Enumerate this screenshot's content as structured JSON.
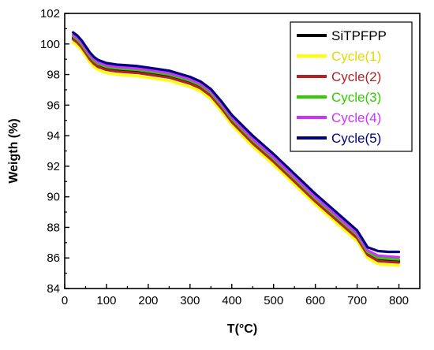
{
  "chart_data": {
    "type": "line",
    "xlabel": "T(°C)",
    "ylabel": "Weigth (%)",
    "xlim": [
      0,
      850
    ],
    "ylim": [
      84,
      102
    ],
    "xticks": [
      "0",
      "100",
      "200",
      "300",
      "400",
      "500",
      "600",
      "700",
      "800"
    ],
    "yticks": [
      "84",
      "86",
      "88",
      "90",
      "92",
      "94",
      "96",
      "98",
      "100",
      "102"
    ],
    "grid": false,
    "legend_position": "top-right",
    "x": [
      20,
      30,
      40,
      50,
      60,
      70,
      80,
      100,
      125,
      150,
      175,
      200,
      250,
      300,
      325,
      350,
      375,
      400,
      450,
      500,
      550,
      600,
      650,
      700,
      725,
      750,
      775,
      800
    ],
    "series": [
      {
        "name": "SiTPFPP",
        "color": "#000000",
        "values": [
          100.4,
          100.2,
          99.9,
          99.5,
          99.1,
          98.8,
          98.6,
          98.4,
          98.3,
          98.25,
          98.2,
          98.1,
          97.9,
          97.5,
          97.2,
          96.7,
          95.9,
          95.0,
          93.6,
          92.4,
          91.1,
          89.8,
          88.6,
          87.4,
          86.3,
          85.9,
          85.85,
          85.8
        ]
      },
      {
        "name": "Cycle(1)",
        "color": "#ffff00",
        "values": [
          100.1,
          99.9,
          99.6,
          99.2,
          98.8,
          98.5,
          98.3,
          98.1,
          98.0,
          97.95,
          97.9,
          97.8,
          97.6,
          97.2,
          96.9,
          96.4,
          95.6,
          94.7,
          93.3,
          92.1,
          90.8,
          89.5,
          88.3,
          87.1,
          86.0,
          85.6,
          85.55,
          85.5
        ]
      },
      {
        "name": "Cycle(2)",
        "color": "#b22222",
        "values": [
          100.3,
          100.1,
          99.8,
          99.4,
          99.0,
          98.7,
          98.5,
          98.3,
          98.2,
          98.15,
          98.1,
          98.0,
          97.8,
          97.4,
          97.1,
          96.6,
          95.8,
          94.9,
          93.5,
          92.3,
          91.0,
          89.7,
          88.5,
          87.3,
          86.2,
          85.8,
          85.75,
          85.7
        ]
      },
      {
        "name": "Cycle(3)",
        "color": "#33cc00",
        "values": [
          100.5,
          100.3,
          100.0,
          99.6,
          99.2,
          98.9,
          98.7,
          98.5,
          98.4,
          98.35,
          98.3,
          98.2,
          98.0,
          97.6,
          97.3,
          96.8,
          96.0,
          95.1,
          93.7,
          92.5,
          91.2,
          89.9,
          88.7,
          87.5,
          86.4,
          86.0,
          85.95,
          85.9
        ]
      },
      {
        "name": "Cycle(4)",
        "color": "#cc33ff",
        "values": [
          100.6,
          100.4,
          100.1,
          99.7,
          99.3,
          99.0,
          98.8,
          98.6,
          98.5,
          98.45,
          98.4,
          98.3,
          98.1,
          97.7,
          97.4,
          96.9,
          96.1,
          95.2,
          93.8,
          92.6,
          91.3,
          90.0,
          88.8,
          87.6,
          86.5,
          86.15,
          86.1,
          86.05
        ]
      },
      {
        "name": "Cycle(5)",
        "color": "#000080",
        "values": [
          100.75,
          100.55,
          100.25,
          99.85,
          99.45,
          99.15,
          98.95,
          98.75,
          98.65,
          98.6,
          98.55,
          98.45,
          98.25,
          97.85,
          97.55,
          97.05,
          96.25,
          95.35,
          94.0,
          92.8,
          91.5,
          90.2,
          89.0,
          87.8,
          86.7,
          86.45,
          86.4,
          86.4
        ]
      }
    ]
  }
}
